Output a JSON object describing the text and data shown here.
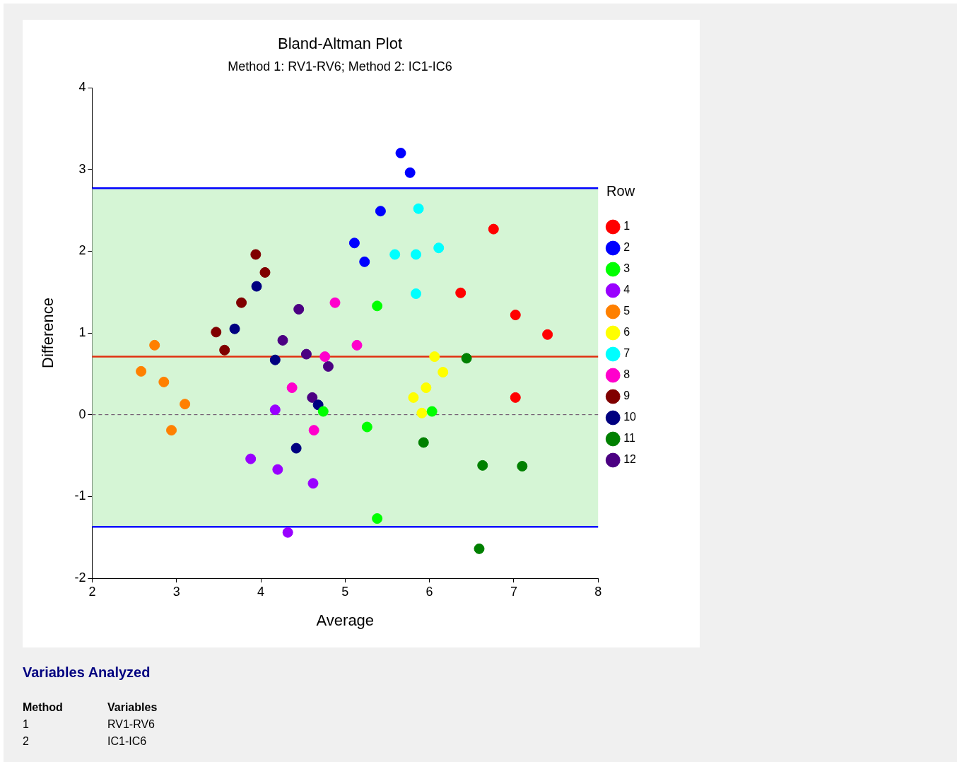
{
  "chart_data": {
    "type": "scatter",
    "title": "Bland-Altman Plot",
    "subtitle": "Method 1: RV1-RV6; Method 2: IC1-IC6",
    "xlabel": "Average",
    "ylabel": "Difference",
    "legend_title": "Row",
    "legend": "right",
    "marker": "circle",
    "grid": false,
    "xlim": [
      2,
      8
    ],
    "xticks": [
      2,
      3,
      4,
      5,
      6,
      7,
      8
    ],
    "ylim": [
      -2,
      4
    ],
    "yticks": [
      -2,
      -1,
      0,
      1,
      2,
      3,
      4
    ],
    "series": [
      {
        "name": "1",
        "color": "#ff0000",
        "x": [
          6.76,
          6.37,
          7.02,
          7.4,
          7.02
        ],
        "values": [
          2.27,
          1.49,
          1.22,
          0.98,
          0.21
        ]
      },
      {
        "name": "2",
        "color": "#0000ff",
        "x": [
          5.66,
          5.77,
          5.42,
          5.11,
          5.23
        ],
        "values": [
          3.2,
          2.96,
          2.49,
          2.1,
          1.87
        ]
      },
      {
        "name": "3",
        "color": "#00ff00",
        "x": [
          5.38,
          4.74,
          5.26,
          6.03,
          5.38
        ],
        "values": [
          1.33,
          0.04,
          -0.15,
          0.04,
          -1.27
        ]
      },
      {
        "name": "4",
        "color": "#9900ff",
        "x": [
          3.88,
          4.17,
          4.2,
          4.62,
          4.32
        ],
        "values": [
          -0.54,
          0.06,
          -0.67,
          -0.84,
          -1.44
        ]
      },
      {
        "name": "5",
        "color": "#ff8000",
        "x": [
          2.58,
          2.74,
          2.85,
          3.1,
          2.94
        ],
        "values": [
          0.53,
          0.85,
          0.4,
          0.13,
          -0.19
        ]
      },
      {
        "name": "6",
        "color": "#ffff00",
        "x": [
          6.06,
          6.16,
          5.96,
          5.81,
          5.91
        ],
        "values": [
          0.71,
          0.52,
          0.33,
          0.21,
          0.02
        ]
      },
      {
        "name": "7",
        "color": "#00ffff",
        "x": [
          5.87,
          5.59,
          5.84,
          6.11,
          5.84
        ],
        "values": [
          2.52,
          1.96,
          1.96,
          2.04,
          1.48
        ]
      },
      {
        "name": "8",
        "color": "#ff00cc",
        "x": [
          4.88,
          5.14,
          4.76,
          4.37,
          4.63
        ],
        "values": [
          1.37,
          0.85,
          0.71,
          0.33,
          -0.19
        ]
      },
      {
        "name": "9",
        "color": "#800000",
        "x": [
          3.94,
          4.05,
          3.77,
          3.47,
          3.57
        ],
        "values": [
          1.96,
          1.74,
          1.37,
          1.01,
          0.79
        ]
      },
      {
        "name": "10",
        "color": "#000080",
        "x": [
          3.95,
          3.69,
          4.17,
          4.68,
          4.42
        ],
        "values": [
          1.57,
          1.05,
          0.67,
          0.12,
          -0.41
        ]
      },
      {
        "name": "11",
        "color": "#008000",
        "x": [
          6.44,
          5.93,
          6.63,
          7.1,
          6.59
        ],
        "values": [
          0.69,
          -0.34,
          -0.62,
          -0.63,
          -1.64
        ]
      },
      {
        "name": "12",
        "color": "#4b0082",
        "x": [
          4.45,
          4.26,
          4.54,
          4.8,
          4.61
        ],
        "values": [
          1.29,
          0.91,
          0.74,
          0.59,
          0.21
        ]
      }
    ],
    "bands": [
      {
        "axis": "y",
        "from": -1.37,
        "to": 2.77,
        "color": "#d5f5d5"
      }
    ],
    "ref_lines": [
      {
        "axis": "y",
        "value": 2.77,
        "color": "#0000ff",
        "line_style": "solid"
      },
      {
        "axis": "y",
        "value": 0.71,
        "color": "#e03010",
        "line_style": "solid"
      },
      {
        "axis": "y",
        "value": -1.37,
        "color": "#0000ff",
        "line_style": "solid"
      },
      {
        "axis": "y",
        "value": 0,
        "color": "#604060",
        "line_style": "dashed"
      }
    ],
    "annotations": [
      "Variables Analyzed",
      "Method",
      "Variables",
      "1",
      "RV1-RV6",
      "2",
      "IC1-IC6"
    ]
  }
}
